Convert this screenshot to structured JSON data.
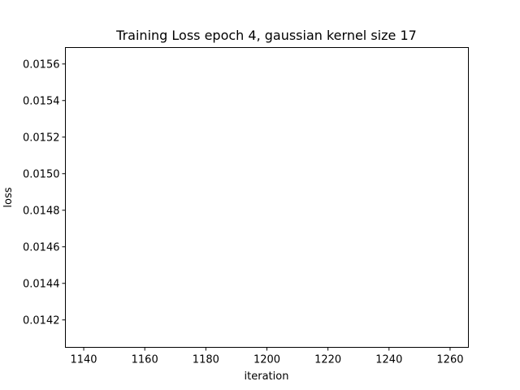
{
  "chart_data": {
    "type": "line",
    "title": "Training Loss epoch 4, gaussian kernel size 17",
    "xlabel": "iteration",
    "ylabel": "loss",
    "xlim": [
      1134,
      1266
    ],
    "ylim": [
      0.01405,
      0.01569
    ],
    "x_ticks": [
      1140,
      1160,
      1180,
      1200,
      1220,
      1240,
      1260
    ],
    "x_tick_labels": [
      "1140",
      "1160",
      "1180",
      "1200",
      "1220",
      "1240",
      "1260"
    ],
    "y_ticks": [
      0.0142,
      0.0144,
      0.0146,
      0.0148,
      0.015,
      0.0152,
      0.0154,
      0.0156
    ],
    "y_tick_labels": [
      "0.0142",
      "0.0144",
      "0.0146",
      "0.0148",
      "0.0150",
      "0.0152",
      "0.0154",
      "0.0156"
    ],
    "series": [],
    "grid": false,
    "legend": "none"
  }
}
